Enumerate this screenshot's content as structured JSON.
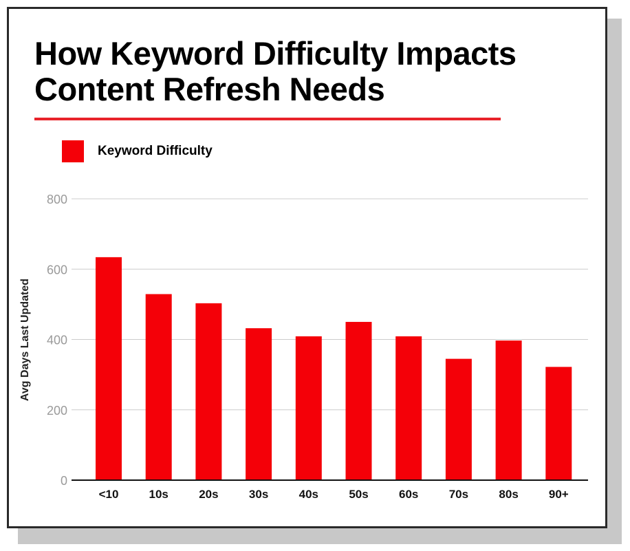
{
  "chart_data": {
    "type": "bar",
    "title": "How Keyword Difficulty Impacts Content Refresh Needs",
    "xlabel": "",
    "ylabel": "Avg Days Last Updated",
    "categories": [
      "<10",
      "10s",
      "20s",
      "30s",
      "40s",
      "50s",
      "60s",
      "70s",
      "80s",
      "90+"
    ],
    "series": [
      {
        "name": "Keyword Difficulty",
        "values": [
          634,
          529,
          503,
          432,
          409,
          450,
          409,
          345,
          397,
          322
        ]
      }
    ],
    "ylim": [
      0,
      800
    ],
    "yticks": [
      "0",
      "200",
      "400",
      "600",
      "800"
    ],
    "grid": true,
    "legend_position": "top-left",
    "colors": {
      "bar": "#f40008",
      "title_rule": "#e8232a",
      "grid": "#cccccc",
      "baseline": "#111111"
    }
  }
}
